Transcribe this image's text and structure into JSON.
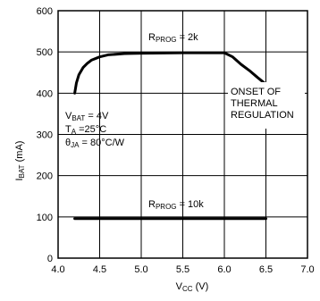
{
  "chart_data": {
    "type": "line",
    "xlabel": {
      "main": "V",
      "sub": "CC",
      "unit": " (V)"
    },
    "ylabel": {
      "main": "I",
      "sub": "BAT",
      "unit": " (mA)"
    },
    "xlim": [
      4.0,
      7.0
    ],
    "ylim": [
      0,
      600
    ],
    "xticks": [
      "4.0",
      "4.5",
      "5.0",
      "5.5",
      "6.0",
      "6.5",
      "7.0"
    ],
    "yticks": [
      "0",
      "100",
      "200",
      "300",
      "400",
      "500",
      "600"
    ],
    "grid": true,
    "series": [
      {
        "name": "RPROG = 2k",
        "x": [
          4.2,
          4.22,
          4.25,
          4.3,
          4.35,
          4.4,
          4.5,
          4.6,
          4.8,
          5.0,
          5.5,
          6.0,
          6.1,
          6.2,
          6.3,
          6.4,
          6.48
        ],
        "y": [
          400,
          425,
          445,
          462,
          472,
          480,
          488,
          493,
          496,
          497,
          498,
          498,
          488,
          470,
          455,
          438,
          425
        ]
      },
      {
        "name": "RPROG = 10k",
        "x": [
          4.2,
          6.5
        ],
        "y": [
          96,
          96
        ]
      }
    ],
    "annotations": {
      "rprog_2k": {
        "main": "R",
        "sub": "PROG",
        "rest": " = 2k"
      },
      "rprog_10k": {
        "main": "R",
        "sub": "PROG",
        "rest": " = 10k"
      },
      "vbat": {
        "main": "V",
        "sub": "BAT",
        "rest": " = 4V"
      },
      "ta": {
        "main": "T",
        "sub": "A",
        "rest": " =25°C"
      },
      "theta": {
        "main": "θ",
        "sub": "JA",
        "rest": " = 80°C/W"
      },
      "onset": [
        "ONSET OF",
        "THERMAL",
        "REGULATION"
      ]
    }
  }
}
